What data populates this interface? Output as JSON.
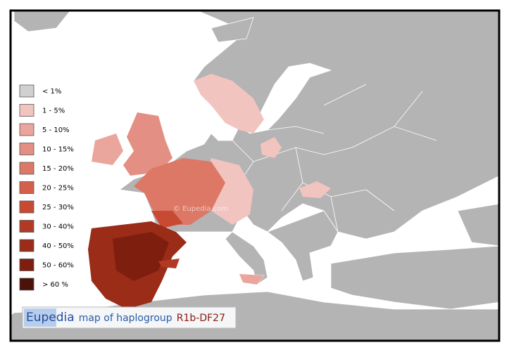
{
  "legend": {
    "items": [
      {
        "label": "< 1%",
        "color": "#d0d0d0"
      },
      {
        "label": "1 - 5%",
        "color": "#f2c4c0"
      },
      {
        "label": "5 - 10%",
        "color": "#eaa59c"
      },
      {
        "label": "10 - 15%",
        "color": "#e38f84"
      },
      {
        "label": "15 - 20%",
        "color": "#dc7865"
      },
      {
        "label": "20 - 25%",
        "color": "#d4604b"
      },
      {
        "label": "25 - 30%",
        "color": "#c94a33"
      },
      {
        "label": "30 - 40%",
        "color": "#b23a24"
      },
      {
        "label": "40 - 50%",
        "color": "#9a2c18"
      },
      {
        "label": "50 - 60%",
        "color": "#7e1e0e"
      },
      {
        "label": "> 60 %",
        "color": "#4a1208"
      }
    ]
  },
  "caption": {
    "brand": "Eupedia",
    "text": "map of haplogroup",
    "haplogroup": "R1b-DF27"
  },
  "watermark": "© Eupedia.com"
}
